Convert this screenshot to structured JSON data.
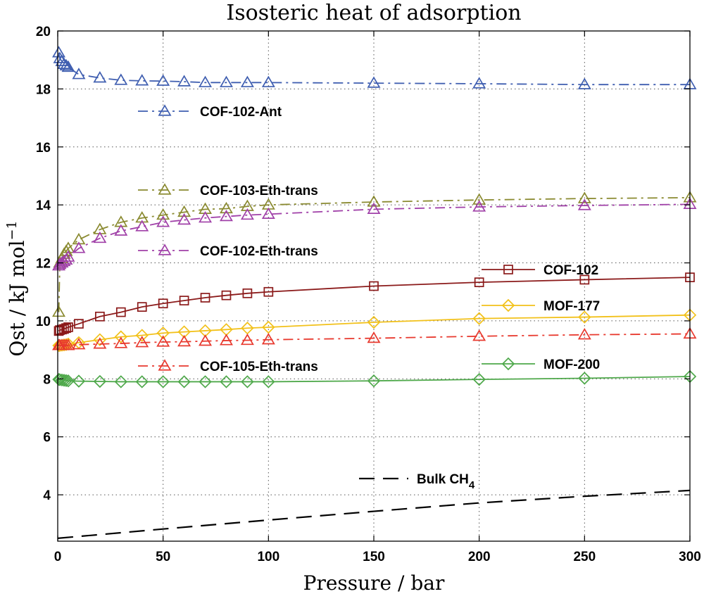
{
  "chart_data": {
    "type": "line",
    "title": "Isosteric heat of adsorption",
    "xlabel": "Pressure / bar",
    "ylabel": "Qst / kJ mol",
    "ylabel_superscript": "−1",
    "xlim": [
      0,
      300
    ],
    "ylim": [
      2.4,
      20
    ],
    "xticks": [
      "0",
      "50",
      "100",
      "150",
      "200",
      "250",
      "300"
    ],
    "yticks": [
      "4",
      "6",
      "8",
      "10",
      "12",
      "14",
      "16",
      "18",
      "20"
    ],
    "grid": true,
    "series": [
      {
        "name": "COF-102-Ant",
        "color": "#3F5EB0",
        "marker": "triangle",
        "dash": "dashdot",
        "x": [
          0.5,
          1,
          2,
          3,
          4,
          5,
          10,
          20,
          30,
          40,
          50,
          60,
          70,
          80,
          90,
          100,
          150,
          200,
          250,
          300
        ],
        "y": [
          19.25,
          19.05,
          18.95,
          18.85,
          18.8,
          18.75,
          18.5,
          18.38,
          18.3,
          18.28,
          18.27,
          18.25,
          18.22,
          18.22,
          18.22,
          18.22,
          18.2,
          18.18,
          18.15,
          18.15
        ]
      },
      {
        "name": "COF-103-Eth-trans",
        "color": "#8A8A30",
        "marker": "triangle",
        "dash": "dashdot",
        "x": [
          0.5,
          1,
          2,
          3,
          4,
          5,
          10,
          20,
          30,
          40,
          50,
          60,
          70,
          80,
          90,
          100,
          150,
          200,
          250,
          300
        ],
        "y": [
          10.3,
          12.0,
          12.15,
          12.3,
          12.4,
          12.5,
          12.8,
          13.15,
          13.4,
          13.55,
          13.65,
          13.75,
          13.85,
          13.87,
          13.95,
          14.0,
          14.1,
          14.17,
          14.22,
          14.25
        ]
      },
      {
        "name": "COF-102-Eth-trans",
        "color": "#A040A8",
        "marker": "triangle",
        "dash": "dashdot",
        "x": [
          0.5,
          1,
          2,
          3,
          4,
          5,
          10,
          20,
          30,
          40,
          50,
          60,
          70,
          80,
          90,
          100,
          150,
          200,
          250,
          300
        ],
        "y": [
          11.9,
          11.95,
          12.0,
          12.05,
          12.1,
          12.2,
          12.5,
          12.85,
          13.1,
          13.25,
          13.4,
          13.48,
          13.55,
          13.6,
          13.65,
          13.68,
          13.85,
          13.93,
          13.98,
          14.02
        ]
      },
      {
        "name": "COF-102",
        "color": "#8B1A1A",
        "marker": "square",
        "dash": "solid",
        "x": [
          0.5,
          1,
          2,
          3,
          4,
          5,
          10,
          20,
          30,
          40,
          50,
          60,
          70,
          80,
          90,
          100,
          150,
          200,
          250,
          300
        ],
        "y": [
          9.65,
          9.68,
          9.7,
          9.72,
          9.75,
          9.78,
          9.9,
          10.15,
          10.3,
          10.48,
          10.6,
          10.7,
          10.8,
          10.88,
          10.95,
          11.0,
          11.2,
          11.33,
          11.42,
          11.5
        ]
      },
      {
        "name": "MOF-177",
        "color": "#F2C11A",
        "marker": "diamond",
        "dash": "solid",
        "x": [
          0.5,
          1,
          2,
          3,
          4,
          5,
          10,
          20,
          30,
          40,
          50,
          60,
          70,
          80,
          90,
          100,
          150,
          200,
          250,
          300
        ],
        "y": [
          9.15,
          9.15,
          9.16,
          9.17,
          9.18,
          9.2,
          9.25,
          9.35,
          9.45,
          9.5,
          9.58,
          9.62,
          9.66,
          9.7,
          9.75,
          9.78,
          9.95,
          10.08,
          10.13,
          10.2
        ]
      },
      {
        "name": "COF-105-Eth-trans",
        "color": "#E8392E",
        "marker": "triangle",
        "dash": "dashdot",
        "x": [
          0.5,
          1,
          2,
          3,
          4,
          5,
          10,
          20,
          30,
          40,
          50,
          60,
          70,
          80,
          90,
          100,
          150,
          200,
          250,
          300
        ],
        "y": [
          9.15,
          9.15,
          9.15,
          9.15,
          9.15,
          9.15,
          9.18,
          9.2,
          9.22,
          9.25,
          9.27,
          9.28,
          9.3,
          9.32,
          9.33,
          9.35,
          9.4,
          9.47,
          9.52,
          9.55
        ]
      },
      {
        "name": "MOF-200",
        "color": "#4EA84A",
        "marker": "diamond",
        "dash": "solid",
        "x": [
          0.5,
          1,
          2,
          3,
          4,
          5,
          10,
          20,
          30,
          40,
          50,
          60,
          70,
          80,
          90,
          100,
          150,
          200,
          250,
          300
        ],
        "y": [
          7.98,
          7.97,
          7.96,
          7.95,
          7.94,
          7.93,
          7.92,
          7.91,
          7.9,
          7.9,
          7.9,
          7.9,
          7.9,
          7.9,
          7.9,
          7.9,
          7.93,
          7.98,
          8.02,
          8.08
        ]
      },
      {
        "name": "Bulk CH",
        "name_subscript": "4",
        "color": "#000000",
        "marker": "none",
        "dash": "dashed",
        "x": [
          0,
          50,
          100,
          150,
          200,
          250,
          300
        ],
        "y": [
          2.5,
          2.82,
          3.13,
          3.43,
          3.72,
          3.95,
          4.15
        ]
      }
    ]
  }
}
